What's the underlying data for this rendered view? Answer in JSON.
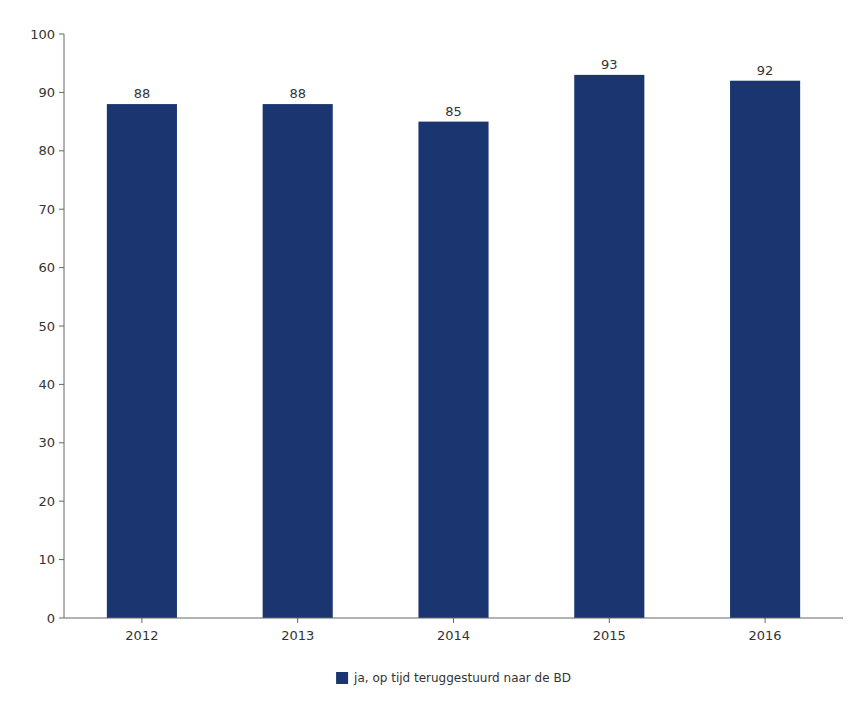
{
  "chart_data": {
    "type": "bar",
    "categories": [
      "2012",
      "2013",
      "2014",
      "2015",
      "2016"
    ],
    "series": [
      {
        "name": "ja, op tijd teruggestuurd naar de BD",
        "color": "#1a3570",
        "values": [
          88,
          88,
          85,
          93,
          92
        ]
      }
    ],
    "ylim": [
      0,
      100
    ],
    "yticks": [
      0,
      10,
      20,
      30,
      40,
      50,
      60,
      70,
      80,
      90,
      100
    ],
    "grid": false,
    "legend": "bottom",
    "data_labels": true
  }
}
